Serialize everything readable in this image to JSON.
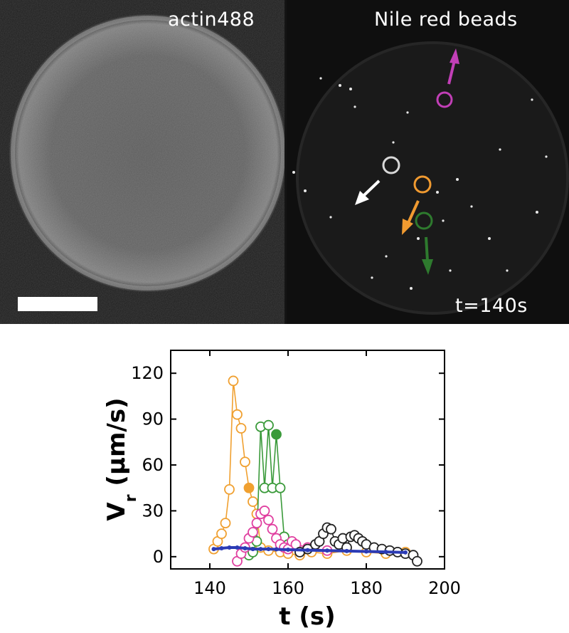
{
  "micrographs": {
    "left_label": "actin488",
    "right_label": "Nile red beads",
    "time_label": "t=140s"
  },
  "chart_data": {
    "type": "scatter",
    "xlabel": "t (s)",
    "ylabel": "V",
    "ylabel_subscript": "r",
    "ylabel_unit": " (µm/s)",
    "xlim": [
      130,
      200
    ],
    "ylim": [
      -8,
      135
    ],
    "xticks": [
      140,
      160,
      180,
      200
    ],
    "yticks": [
      0,
      30,
      60,
      90,
      120
    ],
    "series": [
      {
        "color": "#f0a030",
        "x": [
          141,
          142,
          143,
          144,
          145,
          146,
          147,
          148,
          149,
          150,
          151,
          152,
          153,
          155,
          158,
          160,
          163,
          166,
          170,
          175,
          180,
          185,
          190
        ],
        "y": [
          5,
          10,
          15,
          22,
          44,
          115,
          93,
          84,
          62,
          45,
          36,
          28,
          6,
          4,
          3,
          2,
          1,
          3,
          2,
          4,
          3,
          2,
          3
        ],
        "filled_index": 9
      },
      {
        "color": "#3a9a3a",
        "x": [
          150,
          151,
          152,
          153,
          154,
          155,
          156,
          157,
          158,
          159,
          160
        ],
        "y": [
          1,
          3,
          10,
          85,
          45,
          86,
          45,
          80,
          45,
          13,
          8
        ],
        "filled_index": 7
      },
      {
        "color": "#e040a0",
        "x": [
          147,
          148,
          149,
          150,
          151,
          152,
          153,
          154,
          155,
          156,
          157,
          158,
          159,
          160,
          161,
          162,
          165,
          170
        ],
        "y": [
          -3,
          2,
          6,
          12,
          16,
          22,
          28,
          30,
          24,
          18,
          12,
          8,
          6,
          5,
          10,
          8,
          6,
          4
        ]
      },
      {
        "color": "#222222",
        "x": [
          163,
          165,
          167,
          168,
          169,
          170,
          171,
          172,
          173,
          174,
          175,
          176,
          177,
          178,
          179,
          180,
          182,
          184,
          186,
          188,
          190,
          192,
          193
        ],
        "y": [
          3,
          5,
          8,
          10,
          15,
          19,
          18,
          10,
          8,
          12,
          6,
          13,
          14,
          12,
          10,
          8,
          6,
          5,
          4,
          3,
          2,
          1,
          -3
        ]
      },
      {
        "color": "#2b3bb5",
        "x": [
          141,
          143,
          145,
          147,
          149,
          151,
          153,
          155,
          157,
          160,
          165,
          170,
          175,
          180,
          185,
          190
        ],
        "y": [
          5,
          5.5,
          6,
          6,
          5.5,
          5,
          5,
          5,
          4.8,
          4.6,
          4.3,
          4,
          3.7,
          3.4,
          3.1,
          2.8
        ],
        "style": "solid"
      }
    ]
  }
}
